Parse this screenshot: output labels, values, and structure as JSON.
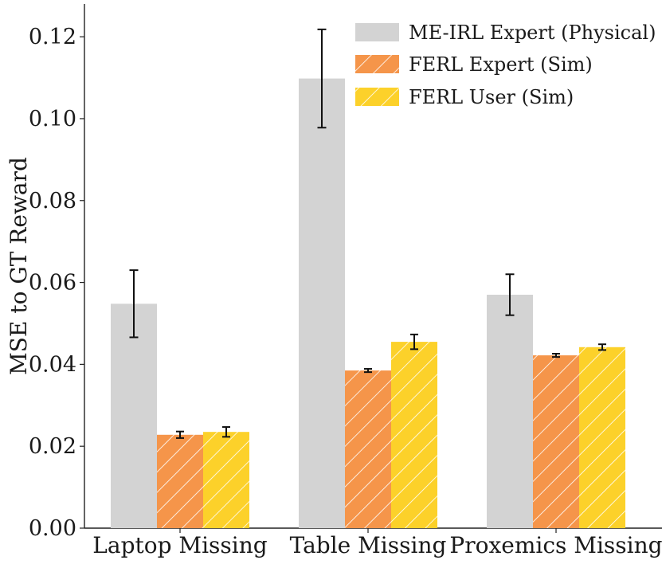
{
  "chart_data": {
    "type": "bar",
    "title": "",
    "xlabel": "",
    "ylabel": "MSE to GT Reward",
    "categories": [
      "Laptop Missing",
      "Table Missing",
      "Proxemics Missing"
    ],
    "ylim": [
      0.0,
      0.128
    ],
    "yticks": [
      "0.00",
      "0.02",
      "0.04",
      "0.06",
      "0.08",
      "0.10",
      "0.12"
    ],
    "grid": false,
    "legend_position": "top-right",
    "series": [
      {
        "name": "ME-IRL Expert (Physical)",
        "color": "#d3d3d3",
        "hatch": false,
        "values": [
          0.0548,
          0.1098,
          0.057
        ],
        "errors": [
          0.0082,
          0.012,
          0.005
        ]
      },
      {
        "name": "FERL Expert (Sim)",
        "color": "#f5954a",
        "hatch": true,
        "values": [
          0.0228,
          0.0385,
          0.0422
        ],
        "errors": [
          0.0008,
          0.0004,
          0.0004
        ]
      },
      {
        "name": "FERL User (Sim)",
        "color": "#fcd12a",
        "hatch": true,
        "values": [
          0.0235,
          0.0455,
          0.0442
        ],
        "errors": [
          0.0012,
          0.0018,
          0.0007
        ]
      }
    ]
  }
}
